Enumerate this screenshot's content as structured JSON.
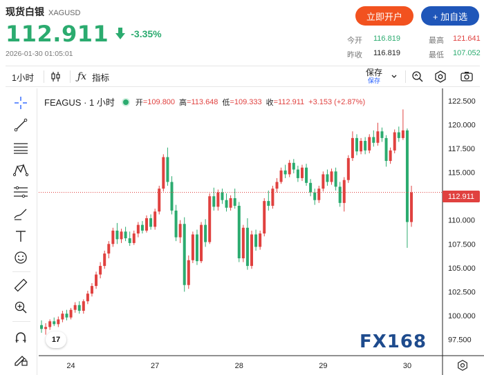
{
  "header": {
    "name": "现货白银",
    "symbol": "XAGUSD",
    "price": "112.911",
    "change": "-3.35%",
    "timestamp": "2026-01-30 01:05:01",
    "btn_open": "立即开户",
    "btn_watch": "+ 加自选",
    "stats": {
      "open_label": "今开",
      "open_value": "116.819",
      "high_label": "最高",
      "high_value": "121.641",
      "prev_label": "昨收",
      "prev_value": "116.819",
      "low_label": "最低",
      "low_value": "107.052"
    },
    "colors": {
      "up": "#e0413f",
      "down": "#2bab6f",
      "accent_open": "#f2521f",
      "accent_watch": "#1f56b9"
    }
  },
  "toolbar": {
    "interval": "1小时",
    "indicators": "指标",
    "save": "保存",
    "save_sub": "保存",
    "icons": [
      "candles-icon",
      "fx-icon",
      "chevron-down-icon",
      "magic-icon",
      "hexagon-settings-icon",
      "camera-icon"
    ]
  },
  "left_tools": [
    "crosshair-icon",
    "trend-line-icon",
    "horizontal-lines-icon",
    "pattern-icon",
    "fib-icon",
    "brush-icon",
    "text-icon",
    "emoji-icon",
    "ruler-icon",
    "zoom-in-icon",
    "magnet-icon",
    "lock-pencil-icon"
  ],
  "legend": {
    "symbol": "FEAGUS · 1 小时",
    "open_label": "开",
    "open_value": "=109.800",
    "high_label": "高",
    "high_value": "=113.648",
    "low_label": "低",
    "low_value": "=109.333",
    "close_label": "收",
    "close_value": "=112.911",
    "change": "+3.153 (+2.87%)"
  },
  "last_price_tag": "112.911",
  "watermark": "FX168",
  "tv_logo": "17",
  "chart_data": {
    "type": "candlestick",
    "ylim": [
      95.8,
      123.8
    ],
    "y_ticks": [
      "122.500",
      "120.000",
      "117.500",
      "115.000",
      "112.500",
      "110.000",
      "107.500",
      "105.000",
      "102.500",
      "100.000",
      "97.500"
    ],
    "x_ticks": [
      "24",
      "27",
      "28",
      "29",
      "30"
    ],
    "last_price": 112.911,
    "candles": [
      [
        99.0,
        99.5,
        98.2,
        98.6
      ],
      [
        98.6,
        99.2,
        98.0,
        98.8
      ],
      [
        98.8,
        99.6,
        98.5,
        99.4
      ],
      [
        99.4,
        99.8,
        98.9,
        99.1
      ],
      [
        99.1,
        99.9,
        98.8,
        99.6
      ],
      [
        99.6,
        100.5,
        99.3,
        100.2
      ],
      [
        100.2,
        100.6,
        99.5,
        99.8
      ],
      [
        99.8,
        100.8,
        99.6,
        100.6
      ],
      [
        100.6,
        101.4,
        100.3,
        101.1
      ],
      [
        101.1,
        101.5,
        100.2,
        100.5
      ],
      [
        100.5,
        101.7,
        100.2,
        101.5
      ],
      [
        101.5,
        102.6,
        101.2,
        102.3
      ],
      [
        102.3,
        103.4,
        102.0,
        103.1
      ],
      [
        103.1,
        104.6,
        102.8,
        104.3
      ],
      [
        104.3,
        105.6,
        103.9,
        105.2
      ],
      [
        105.2,
        106.8,
        104.9,
        106.5
      ],
      [
        106.5,
        107.8,
        106.0,
        107.5
      ],
      [
        107.5,
        109.2,
        107.2,
        108.9
      ],
      [
        108.9,
        109.7,
        107.5,
        108.0
      ],
      [
        108.0,
        109.1,
        107.6,
        108.8
      ],
      [
        108.8,
        109.3,
        107.8,
        108.1
      ],
      [
        108.1,
        108.8,
        107.3,
        107.6
      ],
      [
        107.6,
        108.9,
        107.4,
        108.6
      ],
      [
        108.6,
        109.8,
        108.2,
        109.5
      ],
      [
        109.5,
        109.9,
        108.6,
        108.9
      ],
      [
        108.9,
        110.5,
        108.7,
        110.2
      ],
      [
        110.2,
        110.6,
        109.0,
        109.3
      ],
      [
        109.3,
        111.2,
        109.0,
        110.9
      ],
      [
        110.9,
        113.6,
        110.6,
        113.3
      ],
      [
        113.3,
        116.9,
        113.0,
        116.6
      ],
      [
        116.6,
        117.6,
        113.6,
        114.0
      ],
      [
        114.0,
        114.6,
        110.6,
        111.0
      ],
      [
        111.0,
        111.6,
        107.8,
        108.2
      ],
      [
        108.2,
        110.0,
        107.6,
        109.6
      ],
      [
        109.6,
        110.3,
        102.5,
        103.2
      ],
      [
        103.2,
        106.3,
        102.8,
        105.8
      ],
      [
        105.8,
        108.8,
        105.5,
        108.5
      ],
      [
        108.5,
        109.0,
        105.3,
        105.7
      ],
      [
        105.7,
        109.8,
        105.5,
        109.5
      ],
      [
        109.5,
        110.1,
        107.2,
        107.7
      ],
      [
        107.7,
        112.8,
        107.5,
        112.5
      ],
      [
        112.5,
        113.4,
        111.0,
        111.4
      ],
      [
        111.4,
        113.2,
        111.0,
        112.9
      ],
      [
        112.9,
        113.3,
        111.7,
        112.1
      ],
      [
        112.1,
        112.8,
        110.9,
        111.3
      ],
      [
        111.3,
        112.6,
        111.0,
        112.3
      ],
      [
        112.3,
        113.3,
        111.2,
        111.5
      ],
      [
        111.5,
        111.9,
        105.6,
        106.0
      ],
      [
        106.0,
        109.5,
        105.6,
        109.2
      ],
      [
        109.2,
        110.2,
        104.8,
        105.2
      ],
      [
        105.2,
        108.9,
        104.9,
        108.5
      ],
      [
        108.5,
        109.0,
        106.8,
        107.2
      ],
      [
        107.2,
        108.9,
        106.9,
        108.6
      ],
      [
        108.6,
        112.3,
        108.3,
        112.0
      ],
      [
        112.0,
        113.1,
        111.0,
        111.5
      ],
      [
        111.5,
        113.6,
        111.2,
        113.3
      ],
      [
        113.3,
        114.4,
        112.9,
        114.0
      ],
      [
        114.0,
        115.5,
        113.8,
        115.2
      ],
      [
        115.2,
        115.8,
        114.4,
        114.8
      ],
      [
        114.8,
        116.3,
        114.5,
        116.0
      ],
      [
        116.0,
        116.4,
        114.9,
        115.3
      ],
      [
        115.3,
        115.7,
        114.0,
        114.4
      ],
      [
        114.4,
        115.8,
        114.1,
        115.5
      ],
      [
        115.5,
        115.9,
        113.6,
        113.9
      ],
      [
        113.9,
        114.3,
        112.5,
        112.9
      ],
      [
        112.9,
        113.3,
        111.6,
        112.1
      ],
      [
        112.1,
        113.6,
        111.8,
        113.3
      ],
      [
        113.3,
        115.1,
        113.0,
        114.8
      ],
      [
        114.8,
        115.3,
        113.6,
        114.0
      ],
      [
        114.0,
        115.4,
        113.7,
        115.1
      ],
      [
        115.1,
        115.5,
        113.1,
        113.5
      ],
      [
        113.5,
        114.0,
        111.4,
        111.8
      ],
      [
        111.8,
        114.5,
        110.9,
        114.2
      ],
      [
        114.2,
        116.8,
        113.9,
        116.5
      ],
      [
        116.5,
        119.3,
        116.2,
        118.6
      ],
      [
        118.6,
        119.0,
        116.8,
        117.2
      ],
      [
        117.2,
        118.6,
        116.9,
        118.3
      ],
      [
        118.3,
        118.7,
        116.9,
        117.3
      ],
      [
        117.3,
        119.0,
        117.0,
        118.7
      ],
      [
        118.7,
        119.4,
        117.7,
        118.1
      ],
      [
        118.1,
        120.2,
        117.8,
        119.3
      ],
      [
        119.3,
        119.7,
        118.2,
        118.6
      ],
      [
        118.6,
        118.9,
        115.6,
        116.2
      ],
      [
        116.2,
        117.6,
        115.9,
        117.3
      ],
      [
        117.3,
        119.5,
        117.0,
        119.2
      ],
      [
        119.2,
        119.8,
        118.2,
        118.6
      ],
      [
        118.6,
        121.6,
        118.4,
        119.4
      ],
      [
        119.4,
        119.6,
        107.1,
        109.8
      ],
      [
        109.8,
        113.6,
        109.3,
        112.9
      ]
    ]
  }
}
